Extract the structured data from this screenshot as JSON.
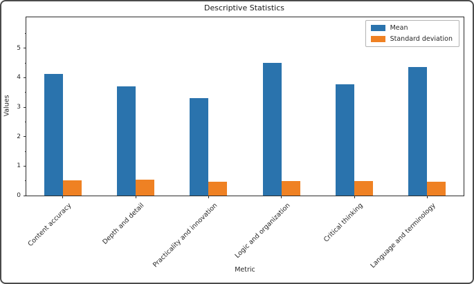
{
  "chart_data": {
    "type": "bar",
    "title": "Descriptive Statistics",
    "xlabel": "Metric",
    "ylabel": "Values",
    "categories": [
      "Content accuracy",
      "Depth and detail",
      "Practicality and innovation",
      "Logic and organization",
      "Critical thinking",
      "Language and terminology"
    ],
    "series": [
      {
        "name": "Mean",
        "color": "#2a73ad",
        "values": [
          4.13,
          3.7,
          3.3,
          4.5,
          3.77,
          4.37
        ]
      },
      {
        "name": "Standard deviation",
        "color": "#ef8123",
        "values": [
          0.51,
          0.53,
          0.46,
          0.5,
          0.5,
          0.48
        ]
      }
    ],
    "ylim": [
      0,
      6.05
    ],
    "yticks": [
      0,
      1,
      2,
      3,
      4,
      5
    ],
    "minor_yticks": [
      0.5,
      1.5,
      2.5,
      3.5,
      4.5,
      5.5
    ],
    "grid": false,
    "legend_position": "upper right",
    "bar_color_mean": "#2a73ad",
    "bar_color_std": "#ef8123",
    "spine_color": "#2b2b2b"
  }
}
